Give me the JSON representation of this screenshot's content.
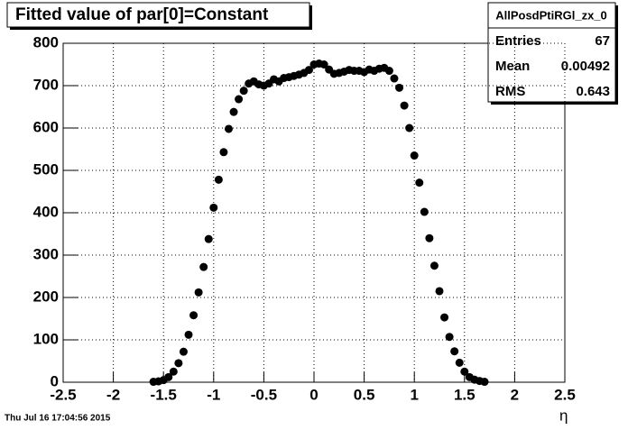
{
  "chart_data": {
    "type": "scatter",
    "title": "Fitted value of par[0]=Constant",
    "x_label": "η",
    "footer_note": "Thu Jul 16 17:04:56 2015",
    "stats": {
      "title": "AllPosdPtiRGl_zx_0",
      "rows": [
        {
          "label": "Entries",
          "value": 67
        },
        {
          "label": "Mean",
          "value": 0.00492
        },
        {
          "label": "RMS",
          "value": 0.643
        }
      ]
    },
    "color": "#000000",
    "grid": true,
    "xlim": [
      -2.5,
      2.5
    ],
    "xticks": [
      -2.5,
      -2,
      -1.5,
      -1,
      -0.5,
      0,
      0.5,
      1,
      1.5,
      2,
      2.5
    ],
    "ylim": [
      0,
      800
    ],
    "yticks": [
      0,
      100,
      200,
      300,
      400,
      500,
      600,
      700,
      800
    ],
    "x": [
      -1.6,
      -1.55,
      -1.5,
      -1.45,
      -1.4,
      -1.35,
      -1.3,
      -1.25,
      -1.2,
      -1.15,
      -1.1,
      -1.05,
      -1.0,
      -0.95,
      -0.9,
      -0.85,
      -0.8,
      -0.75,
      -0.7,
      -0.65,
      -0.6,
      -0.55,
      -0.5,
      -0.45,
      -0.4,
      -0.35,
      -0.3,
      -0.25,
      -0.2,
      -0.15,
      -0.1,
      -0.05,
      0,
      0.05,
      0.1,
      0.15,
      0.2,
      0.25,
      0.3,
      0.35,
      0.4,
      0.45,
      0.5,
      0.55,
      0.6,
      0.65,
      0.7,
      0.75,
      0.8,
      0.85,
      0.9,
      0.95,
      1.0,
      1.05,
      1.1,
      1.15,
      1.2,
      1.25,
      1.3,
      1.35,
      1.4,
      1.45,
      1.5,
      1.55,
      1.6,
      1.65,
      1.7
    ],
    "values": [
      1,
      2,
      5,
      12,
      25,
      45,
      72,
      112,
      158,
      212,
      272,
      338,
      412,
      478,
      543,
      598,
      638,
      668,
      688,
      705,
      710,
      703,
      700,
      705,
      715,
      710,
      718,
      720,
      723,
      726,
      730,
      737,
      750,
      752,
      750,
      738,
      728,
      730,
      733,
      737,
      735,
      735,
      732,
      738,
      735,
      740,
      742,
      735,
      717,
      695,
      653,
      600,
      535,
      471,
      402,
      340,
      275,
      215,
      153,
      107,
      73,
      46,
      25,
      12,
      6,
      3,
      1
    ]
  }
}
